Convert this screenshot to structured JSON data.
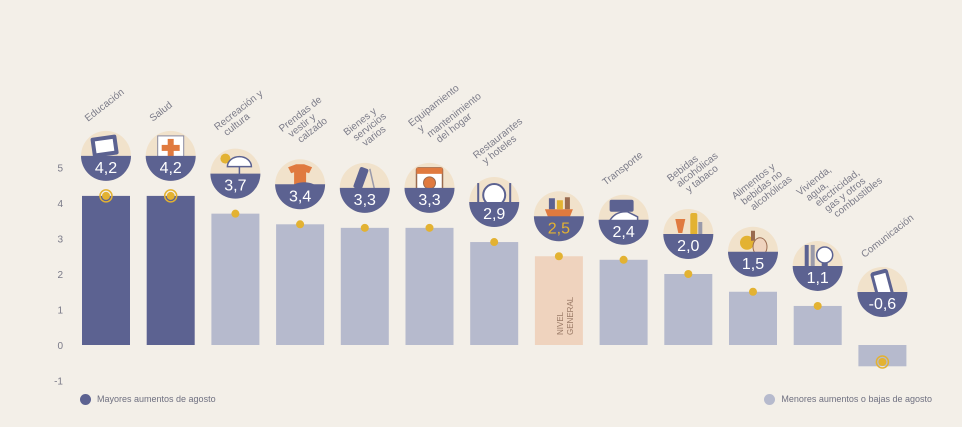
{
  "chart_data": {
    "type": "bar",
    "categories": [
      "Educación",
      "Salud",
      "Recreación y cultura",
      "Prendas de vestir y calzado",
      "Bienes y servicios varios",
      "Equipamiento y mantenimiento del hogar",
      "Restaurantes y hoteles",
      "NIVEL GENERAL",
      "Transporte",
      "Bebidas alcohólicas y tabaco",
      "Alimentos y bebidas no alcohólicas",
      "Vivienda, agua, electricidad, gas y otros combustibles",
      "Comunicación"
    ],
    "values": [
      4.2,
      4.2,
      3.7,
      3.4,
      3.3,
      3.3,
      2.9,
      2.5,
      2.4,
      2.0,
      1.5,
      1.1,
      -0.6
    ],
    "value_labels": [
      "4,2",
      "4,2",
      "3,7",
      "3,4",
      "3,3",
      "3,3",
      "2,9",
      "2,5",
      "2,4",
      "2,0",
      "1,5",
      "1,1",
      "-0,6"
    ],
    "groups": [
      "mayores",
      "mayores",
      "menores",
      "menores",
      "menores",
      "menores",
      "menores",
      "nivel",
      "menores",
      "menores",
      "menores",
      "menores",
      "menores"
    ],
    "nivel_label": [
      "NIVEL",
      "GENERAL"
    ],
    "ylim": [
      -1,
      5
    ],
    "yticks": [
      "-1",
      "0",
      "1",
      "2",
      "3",
      "4",
      "5"
    ],
    "xlabel": "",
    "ylabel": "",
    "grid": false,
    "legend": [
      {
        "label": "Mayores aumentos de agosto",
        "color": "#5c6291"
      },
      {
        "label": "Menores aumentos o bajas de agosto",
        "color": "#b6bacd"
      }
    ],
    "colors": {
      "mayores": "#5c6291",
      "menores": "#b6bacd",
      "nivel": "#efd3be",
      "bubble": "#5c6291",
      "marker": "#e3b232",
      "axis_text": "#7a7a88",
      "label_text": "#7b7b88",
      "icon_bg": "#f1e2cb"
    }
  }
}
